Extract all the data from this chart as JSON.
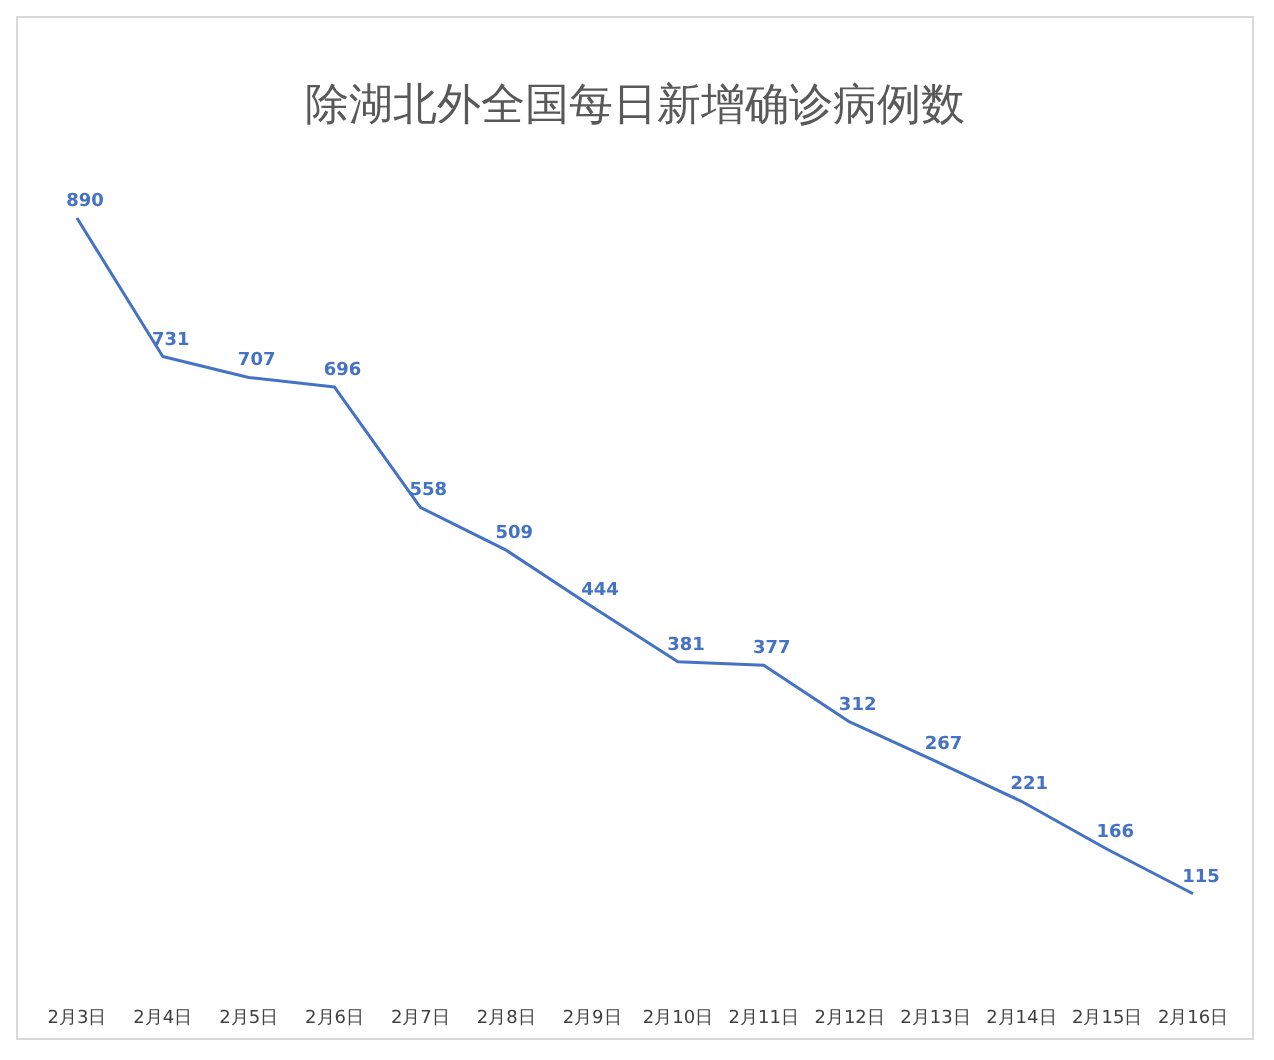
{
  "chart_data": {
    "type": "line",
    "title": "除湖北外全国每日新增确诊病例数",
    "categories": [
      "2月3日",
      "2月4日",
      "2月5日",
      "2月6日",
      "2月7日",
      "2月8日",
      "2月9日",
      "2月10日",
      "2月11日",
      "2月12日",
      "2月13日",
      "2月14日",
      "2月15日",
      "2月16日"
    ],
    "series": [
      {
        "color": "#4472c4",
        "values": [
          890,
          731,
          707,
          696,
          558,
          509,
          444,
          381,
          377,
          312,
          267,
          221,
          166,
          115
        ]
      }
    ],
    "data_labels": true,
    "grid": false,
    "marker": "none"
  }
}
